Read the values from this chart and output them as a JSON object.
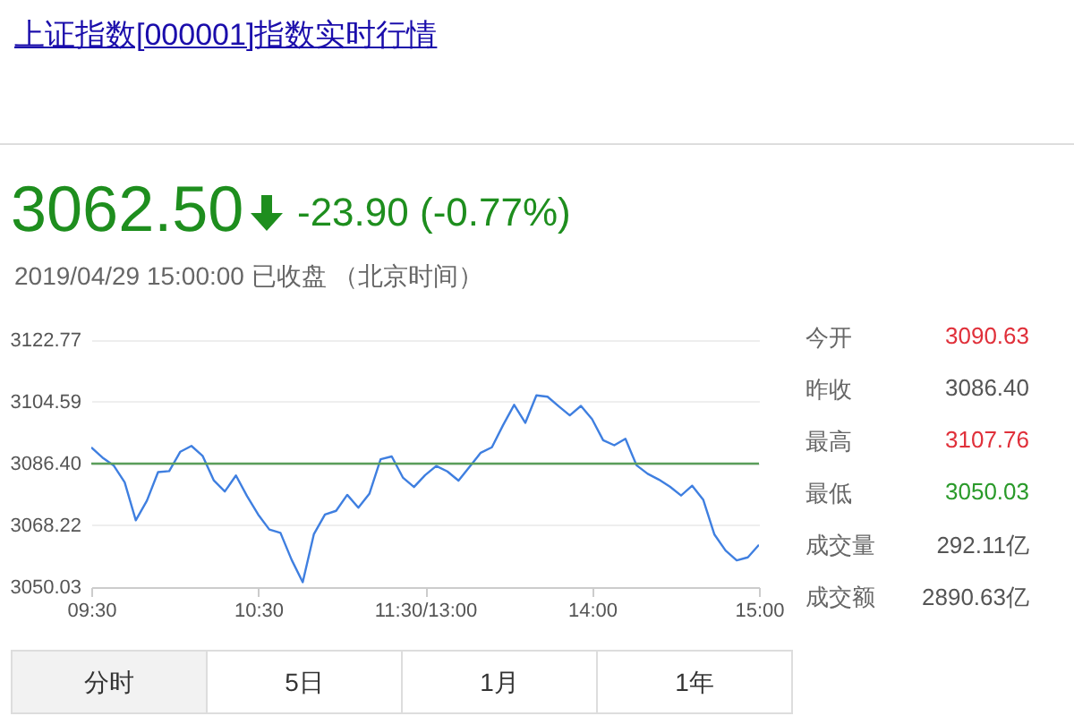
{
  "chart_data": [
    {
      "type": "line",
      "title": "上证指数[000001]指数实时行情",
      "annotations": [
        "3062.50",
        "-23.90 (-0.77%)",
        "2019/04/29 15:00:00 已收盘 （北京时间）",
        "分时",
        "5日",
        "1月",
        "1年"
      ],
      "categories": [
        "09:30",
        null,
        null,
        null,
        null,
        null,
        null,
        null,
        null,
        null,
        null,
        null,
        null,
        null,
        null,
        "10:30",
        null,
        null,
        null,
        null,
        null,
        null,
        null,
        null,
        null,
        null,
        null,
        null,
        null,
        null,
        "11:30/13:00",
        null,
        null,
        null,
        null,
        null,
        null,
        null,
        null,
        null,
        null,
        null,
        null,
        null,
        null,
        "14:00",
        null,
        null,
        null,
        null,
        null,
        null,
        null,
        null,
        null,
        null,
        null,
        null,
        null,
        null,
        "15:00"
      ],
      "series": [
        {
          "color": "#3f7fe0",
          "values": [
            3091.2,
            3088.2,
            3085.9,
            3080.9,
            3069.7,
            3075.5,
            3083.9,
            3084.2,
            3089.9,
            3091.6,
            3088.7,
            3081.5,
            3078.2,
            3082.9,
            3076.8,
            3071.4,
            3067.0,
            3066.0,
            3058.1,
            3051.5,
            3065.6,
            3071.4,
            3072.5,
            3077.2,
            3073.4,
            3077.6,
            3087.7,
            3088.5,
            3082.3,
            3079.5,
            3083.0,
            3085.7,
            3084.1,
            3081.4,
            3085.5,
            3089.6,
            3091.2,
            3097.7,
            3103.7,
            3098.4,
            3106.5,
            3106.1,
            3103.3,
            3100.6,
            3103.4,
            3099.5,
            3093.3,
            3091.8,
            3093.7,
            3085.9,
            3083.4,
            3081.7,
            3079.6,
            3077.0,
            3079.9,
            3075.7,
            3065.5,
            3060.8,
            3057.9,
            3058.8,
            3062.5
          ]
        }
      ],
      "ylim": [
        3050.03,
        3122.77
      ],
      "yticks": [
        3050.03,
        3068.22,
        {
          "value": 3086.4,
          "label": "3086.40"
        },
        3104.59,
        3122.77
      ],
      "ref_lines": [
        {
          "axis": "y",
          "value": 3086.4,
          "color": "#5a9e5a"
        }
      ],
      "grid": "y",
      "marker": "none",
      "line_style": "solid"
    },
    {
      "type": "other",
      "categories": [
        "今开",
        "昨收",
        "最高",
        "最低",
        "成交量",
        "成交额"
      ],
      "value_labels": [
        "3090.63",
        "3086.40",
        "3107.76",
        "3050.03",
        "292.11亿",
        "2890.63亿"
      ],
      "colors": [
        "#e0303a",
        "#555555",
        "#e0303a",
        "#2a9a2a",
        "#555555",
        "#555555"
      ]
    }
  ]
}
